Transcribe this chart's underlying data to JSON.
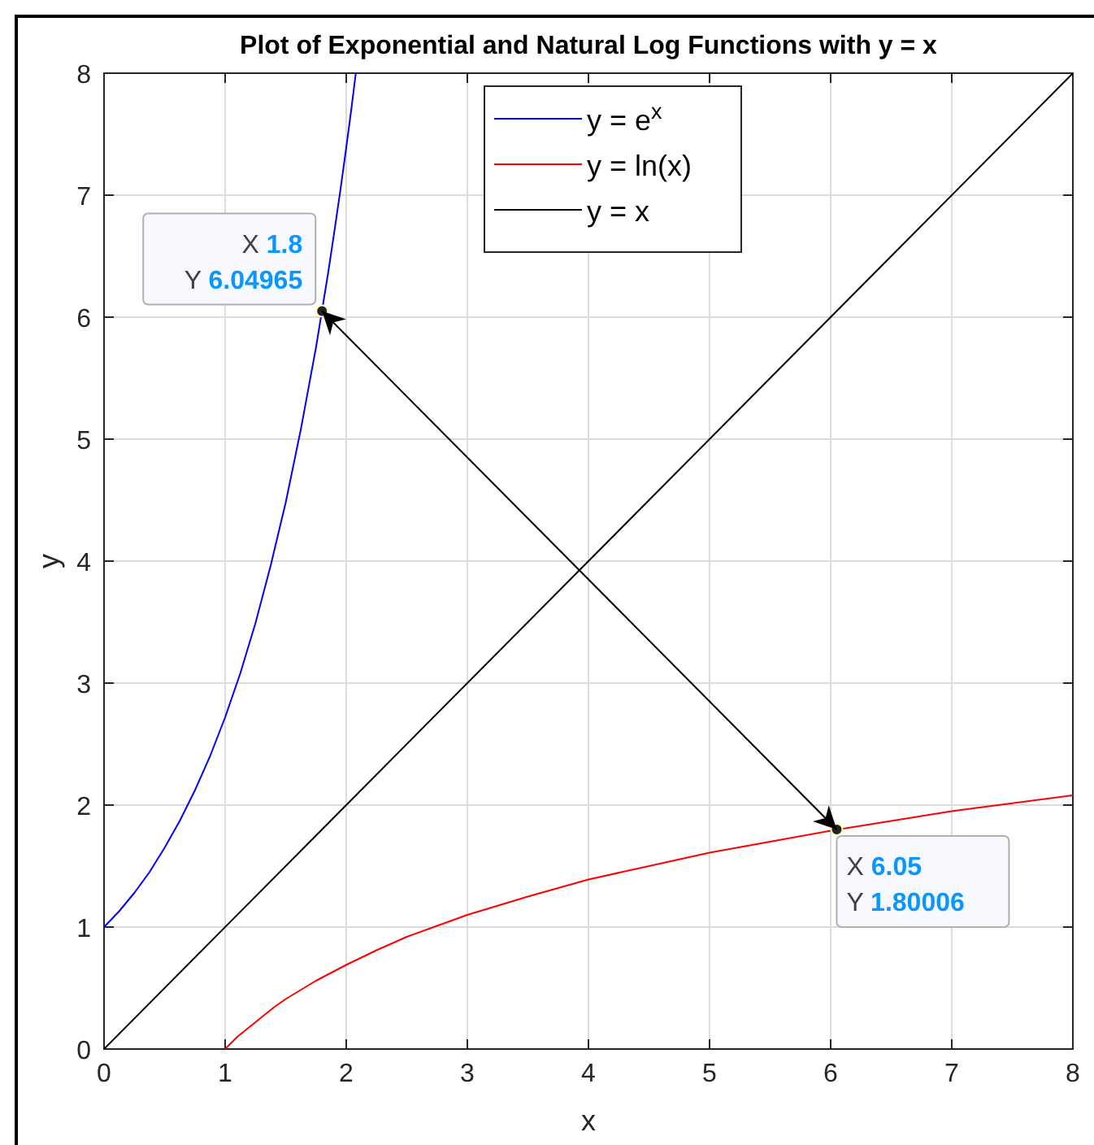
{
  "chart_data": {
    "type": "line",
    "title": "Plot of Exponential and Natural Log Functions with y = x",
    "xlabel": "x",
    "ylabel": "y",
    "xlim": [
      0,
      8
    ],
    "ylim": [
      0,
      8
    ],
    "xticks": [
      0,
      1,
      2,
      3,
      4,
      5,
      6,
      7,
      8
    ],
    "yticks": [
      0,
      1,
      2,
      3,
      4,
      5,
      6,
      7,
      8
    ],
    "grid": true,
    "legend": "top",
    "series": [
      {
        "name": "y = e$^{x}$",
        "color": "#0000ff",
        "x": [
          0,
          0.125,
          0.25,
          0.375,
          0.5,
          0.625,
          0.75,
          0.875,
          1,
          1.125,
          1.25,
          1.375,
          1.5,
          1.625,
          1.75,
          1.85,
          1.9,
          1.95,
          2,
          2.04,
          2.079
        ],
        "values": [
          1,
          1.13,
          1.28,
          1.45,
          1.65,
          1.87,
          2.12,
          2.4,
          2.72,
          3.08,
          3.49,
          3.96,
          4.48,
          5.08,
          5.75,
          6.36,
          6.69,
          7.03,
          7.39,
          7.69,
          8
        ]
      },
      {
        "name": "y = ln(x)",
        "color": "#ff0000",
        "x": [
          1,
          1.05,
          1.1,
          1.2,
          1.3,
          1.4,
          1.5,
          1.75,
          2,
          2.25,
          2.5,
          2.75,
          3,
          3.5,
          4,
          4.5,
          5,
          5.5,
          6,
          7,
          8
        ],
        "values": [
          0,
          0.05,
          0.1,
          0.18,
          0.26,
          0.34,
          0.41,
          0.56,
          0.69,
          0.81,
          0.92,
          1.01,
          1.1,
          1.25,
          1.39,
          1.5,
          1.61,
          1.7,
          1.79,
          1.95,
          2.08
        ]
      },
      {
        "name": "y = x",
        "color": "#000000",
        "x": [
          0,
          8
        ],
        "values": [
          0,
          8
        ]
      },
      {
        "type": "scatter",
        "color": "#222222",
        "marker": "circle",
        "x": [
          1.8,
          6.05
        ],
        "values": [
          6.04965,
          1.80006
        ]
      }
    ],
    "annotations": [
      "X 1.8",
      "Y 6.04965",
      "X 6.05",
      "Y 1.80006"
    ]
  }
}
